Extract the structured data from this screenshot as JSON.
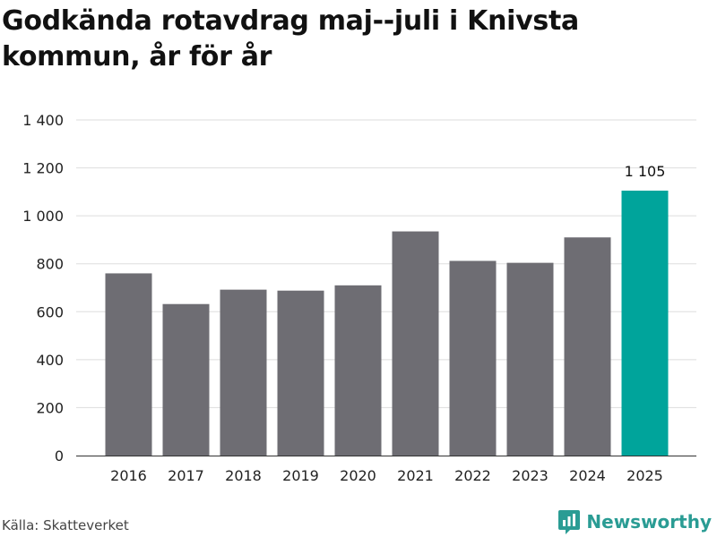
{
  "title": "Godkända rotavdrag maj--juli i Knivsta kommun, år för år",
  "source": "Källa: Skatteverket",
  "brand": {
    "name": "Newsworthy",
    "icon": "newsworthy-logo-icon",
    "color": "#2a9c94"
  },
  "chart_data": {
    "type": "bar",
    "title": "Godkända rotavdrag maj--juli i Knivsta kommun, år för år",
    "categories": [
      "2016",
      "2017",
      "2018",
      "2019",
      "2020",
      "2021",
      "2022",
      "2023",
      "2024",
      "2025"
    ],
    "values": [
      760,
      632,
      692,
      688,
      710,
      935,
      812,
      804,
      910,
      1105
    ],
    "xlabel": "",
    "ylabel": "",
    "ylim": [
      0,
      1400
    ],
    "yticks": [
      0,
      200,
      400,
      600,
      800,
      1000,
      1200,
      1400
    ],
    "ytick_labels": [
      "0",
      "200",
      "400",
      "600",
      "800",
      "1 000",
      "1 200",
      "1 400"
    ],
    "grid": true,
    "colors": {
      "default": "#6e6d73",
      "highlight": "#00a49b",
      "grid": "#dddddd",
      "axis": "#333333"
    },
    "highlight_index": 9,
    "data_labels": [
      {
        "index": 9,
        "text": "1 105"
      }
    ]
  }
}
